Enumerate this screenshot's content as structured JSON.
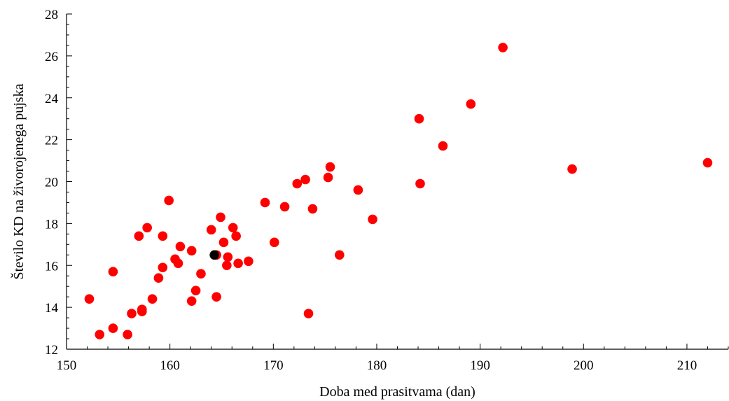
{
  "chart_data": {
    "type": "scatter",
    "title": "",
    "xlabel": "Doba med prasitvama (dan)",
    "ylabel": "Število KD na živorojenega pujska",
    "xlim": [
      150,
      214
    ],
    "ylim": [
      12,
      28
    ],
    "xticks": [
      150,
      160,
      170,
      180,
      190,
      200,
      210
    ],
    "yticks": [
      12,
      14,
      16,
      18,
      20,
      22,
      24,
      26,
      28
    ],
    "grid": false,
    "colors": {
      "points": "#ff0000",
      "highlight": "#000000",
      "axis": "#000000"
    },
    "series": [
      {
        "color": "#ff0000",
        "points": [
          [
            152.2,
            14.4
          ],
          [
            153.2,
            12.7
          ],
          [
            154.5,
            15.7
          ],
          [
            154.5,
            13.0
          ],
          [
            155.9,
            12.7
          ],
          [
            156.3,
            13.7
          ],
          [
            157.0,
            17.4
          ],
          [
            157.3,
            13.9
          ],
          [
            157.3,
            13.8
          ],
          [
            157.8,
            17.8
          ],
          [
            158.3,
            14.4
          ],
          [
            158.9,
            15.4
          ],
          [
            159.3,
            17.4
          ],
          [
            159.3,
            15.9
          ],
          [
            159.9,
            19.1
          ],
          [
            160.5,
            16.3
          ],
          [
            160.8,
            16.1
          ],
          [
            161.0,
            16.9
          ],
          [
            162.1,
            16.7
          ],
          [
            162.1,
            14.3
          ],
          [
            162.5,
            14.8
          ],
          [
            163.0,
            15.6
          ],
          [
            164.0,
            17.7
          ],
          [
            164.5,
            14.5
          ],
          [
            164.5,
            16.5
          ],
          [
            164.9,
            18.3
          ],
          [
            165.2,
            17.1
          ],
          [
            165.5,
            16.0
          ],
          [
            165.6,
            16.4
          ],
          [
            166.1,
            17.8
          ],
          [
            166.4,
            17.4
          ],
          [
            166.6,
            16.1
          ],
          [
            167.6,
            16.2
          ],
          [
            169.2,
            19.0
          ],
          [
            170.1,
            17.1
          ],
          [
            171.1,
            18.8
          ],
          [
            172.3,
            19.9
          ],
          [
            173.1,
            20.1
          ],
          [
            173.4,
            13.7
          ],
          [
            173.8,
            18.7
          ],
          [
            175.3,
            20.2
          ],
          [
            175.5,
            20.7
          ],
          [
            176.4,
            16.5
          ],
          [
            178.2,
            19.6
          ],
          [
            179.6,
            18.2
          ],
          [
            184.1,
            23.0
          ],
          [
            184.2,
            19.9
          ],
          [
            186.4,
            21.7
          ],
          [
            189.1,
            23.7
          ],
          [
            192.2,
            26.4
          ],
          [
            198.9,
            20.6
          ],
          [
            212.0,
            20.9
          ]
        ]
      },
      {
        "color": "#000000",
        "points": [
          [
            164.3,
            16.5
          ]
        ]
      }
    ]
  }
}
